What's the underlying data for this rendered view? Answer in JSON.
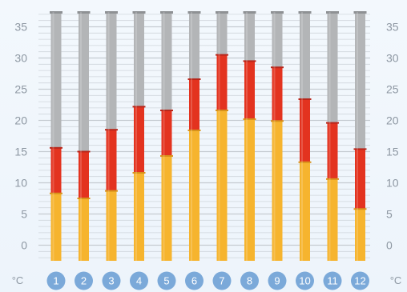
{
  "chart_data": {
    "type": "bar",
    "unit_left": "°C",
    "unit_right": "°C",
    "categories": [
      "1",
      "2",
      "3",
      "4",
      "5",
      "6",
      "7",
      "8",
      "9",
      "10",
      "11",
      "12"
    ],
    "y_ticks": [
      0,
      5,
      10,
      15,
      20,
      25,
      30,
      35
    ],
    "ylim": [
      -2.5,
      37.5
    ],
    "series": [
      {
        "values": [
          8.3,
          7.5,
          8.7,
          11.6,
          14.3,
          18.4,
          21.6,
          20.2,
          19.9,
          13.3,
          10.6,
          5.8
        ]
      },
      {
        "values": [
          15.6,
          15.0,
          18.5,
          22.2,
          21.6,
          26.6,
          30.5,
          29.5,
          28.5,
          23.4,
          19.6,
          15.4
        ]
      }
    ],
    "colors": {
      "low": "#f6b42e",
      "high": "#e3331f",
      "track": "#b3b5b7",
      "grid": "#c3c9cf",
      "badge": "#7ba9d9"
    }
  }
}
